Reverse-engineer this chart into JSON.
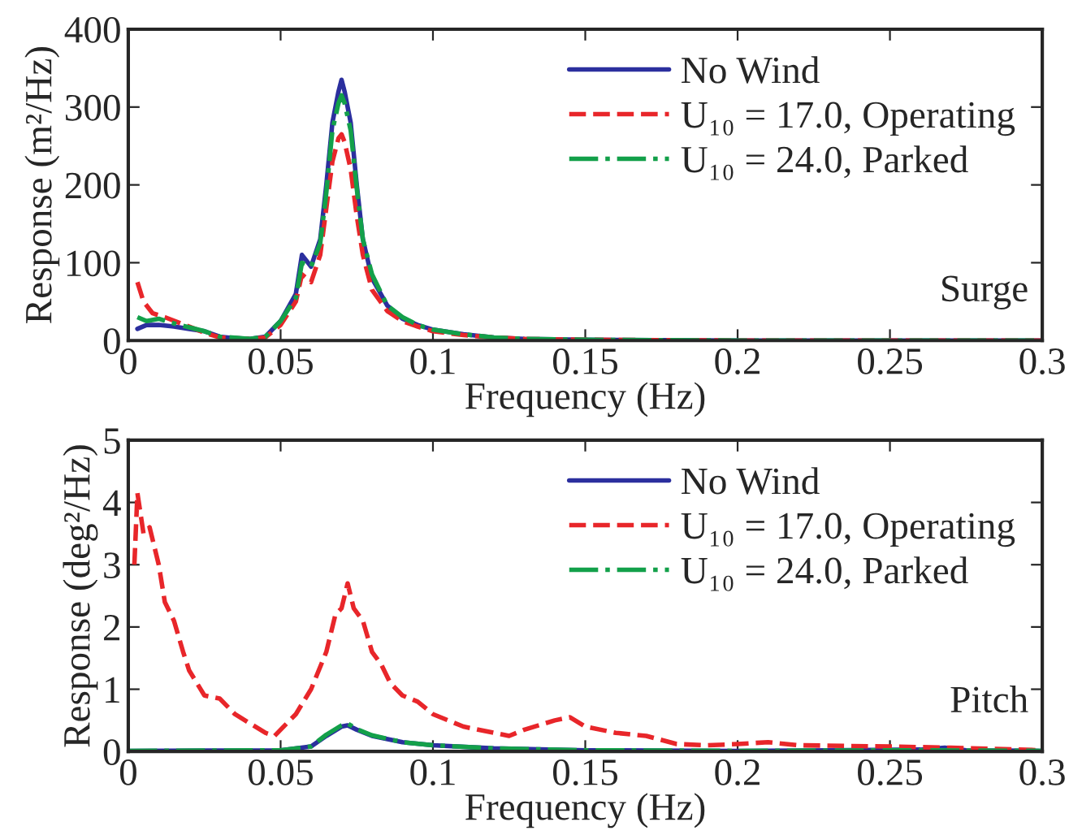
{
  "chart_data": [
    {
      "type": "line",
      "xlabel": "Frequency (Hz)",
      "ylabel": "Response (m²/Hz)",
      "xlim": [
        0,
        0.3
      ],
      "ylim": [
        0,
        400
      ],
      "xticks": [
        0,
        0.05,
        0.1,
        0.15,
        0.2,
        0.25,
        0.3
      ],
      "yticks": [
        0,
        100,
        200,
        300,
        400
      ],
      "grid": false,
      "legend": "top right",
      "annotations": [
        "Surge"
      ],
      "series": [
        {
          "name": "No Wind",
          "color": "#2b2f9e",
          "line_style": "solid",
          "x": [
            0.003,
            0.006,
            0.01,
            0.015,
            0.02,
            0.025,
            0.03,
            0.035,
            0.04,
            0.045,
            0.05,
            0.055,
            0.057,
            0.06,
            0.063,
            0.065,
            0.067,
            0.069,
            0.07,
            0.071,
            0.073,
            0.075,
            0.077,
            0.08,
            0.085,
            0.09,
            0.095,
            0.1,
            0.11,
            0.12,
            0.13,
            0.15,
            0.2,
            0.3
          ],
          "values": [
            15,
            20,
            20,
            18,
            15,
            12,
            5,
            3,
            2,
            5,
            25,
            60,
            110,
            95,
            130,
            200,
            280,
            320,
            335,
            320,
            280,
            200,
            130,
            80,
            45,
            28,
            20,
            14,
            8,
            4,
            2,
            1,
            0,
            0
          ]
        },
        {
          "name": "U₁₀ = 17.0, Operating",
          "color": "#e8262a",
          "line_style": "dashed",
          "x": [
            0.003,
            0.005,
            0.008,
            0.012,
            0.02,
            0.025,
            0.03,
            0.04,
            0.045,
            0.05,
            0.055,
            0.057,
            0.06,
            0.063,
            0.065,
            0.067,
            0.069,
            0.07,
            0.071,
            0.073,
            0.075,
            0.077,
            0.08,
            0.085,
            0.09,
            0.095,
            0.1,
            0.11,
            0.12,
            0.13,
            0.15,
            0.2,
            0.3
          ],
          "values": [
            75,
            50,
            35,
            30,
            18,
            10,
            4,
            2,
            4,
            20,
            50,
            85,
            75,
            110,
            170,
            230,
            260,
            265,
            255,
            220,
            160,
            110,
            65,
            38,
            25,
            18,
            12,
            7,
            4,
            2,
            1,
            0,
            0
          ]
        },
        {
          "name": "U₁₀ = 24.0, Parked",
          "color": "#13a04a",
          "line_style": "dashdot",
          "x": [
            0.003,
            0.006,
            0.01,
            0.015,
            0.02,
            0.025,
            0.03,
            0.04,
            0.045,
            0.05,
            0.055,
            0.057,
            0.06,
            0.063,
            0.065,
            0.067,
            0.069,
            0.07,
            0.071,
            0.073,
            0.075,
            0.077,
            0.08,
            0.085,
            0.09,
            0.095,
            0.1,
            0.11,
            0.12,
            0.13,
            0.15,
            0.2,
            0.3
          ],
          "values": [
            30,
            25,
            28,
            22,
            17,
            12,
            5,
            2,
            5,
            25,
            55,
            100,
            95,
            125,
            190,
            270,
            305,
            315,
            305,
            270,
            195,
            130,
            85,
            45,
            30,
            20,
            14,
            8,
            4,
            2,
            1,
            0,
            0
          ]
        }
      ]
    },
    {
      "type": "line",
      "xlabel": "Frequency (Hz)",
      "ylabel": "Response (deg²/Hz)",
      "xlim": [
        0,
        0.3
      ],
      "ylim": [
        0,
        5
      ],
      "xticks": [
        0,
        0.05,
        0.1,
        0.15,
        0.2,
        0.25,
        0.3
      ],
      "yticks": [
        0,
        1,
        2,
        3,
        4,
        5
      ],
      "grid": false,
      "legend": "top right",
      "annotations": [
        "Pitch"
      ],
      "series": [
        {
          "name": "No Wind",
          "color": "#2b2f9e",
          "line_style": "solid",
          "x": [
            0.0,
            0.05,
            0.06,
            0.065,
            0.07,
            0.072,
            0.075,
            0.08,
            0.09,
            0.1,
            0.12,
            0.15,
            0.2,
            0.26,
            0.268,
            0.275,
            0.3
          ],
          "values": [
            0.01,
            0.02,
            0.08,
            0.25,
            0.4,
            0.42,
            0.35,
            0.25,
            0.15,
            0.1,
            0.05,
            0.02,
            0.01,
            0.03,
            0.06,
            0.02,
            0.01
          ]
        },
        {
          "name": "U₁₀ = 17.0, Operating",
          "color": "#e8262a",
          "line_style": "dashed",
          "x": [
            0.002,
            0.003,
            0.005,
            0.007,
            0.01,
            0.012,
            0.015,
            0.018,
            0.02,
            0.025,
            0.03,
            0.035,
            0.04,
            0.045,
            0.048,
            0.05,
            0.055,
            0.06,
            0.065,
            0.068,
            0.07,
            0.072,
            0.074,
            0.077,
            0.08,
            0.083,
            0.086,
            0.09,
            0.095,
            0.1,
            0.11,
            0.12,
            0.125,
            0.13,
            0.14,
            0.145,
            0.15,
            0.16,
            0.17,
            0.18,
            0.19,
            0.2,
            0.21,
            0.22,
            0.25,
            0.27,
            0.3
          ],
          "values": [
            3.0,
            4.15,
            3.5,
            3.6,
            3.0,
            2.4,
            2.1,
            1.6,
            1.3,
            0.9,
            0.85,
            0.6,
            0.45,
            0.3,
            0.25,
            0.35,
            0.6,
            1.0,
            1.6,
            2.2,
            2.3,
            2.7,
            2.3,
            2.1,
            1.6,
            1.4,
            1.1,
            0.9,
            0.8,
            0.6,
            0.4,
            0.3,
            0.25,
            0.35,
            0.5,
            0.55,
            0.4,
            0.3,
            0.25,
            0.12,
            0.1,
            0.12,
            0.15,
            0.1,
            0.08,
            0.06,
            0.02
          ]
        },
        {
          "name": "U₁₀ = 24.0, Parked",
          "color": "#13a04a",
          "line_style": "dashdot",
          "x": [
            0.0,
            0.05,
            0.06,
            0.065,
            0.07,
            0.072,
            0.075,
            0.08,
            0.09,
            0.1,
            0.12,
            0.15,
            0.2,
            0.26,
            0.3
          ],
          "values": [
            0.01,
            0.02,
            0.08,
            0.27,
            0.42,
            0.45,
            0.36,
            0.26,
            0.15,
            0.1,
            0.05,
            0.02,
            0.01,
            0.02,
            0.01
          ]
        }
      ]
    }
  ]
}
